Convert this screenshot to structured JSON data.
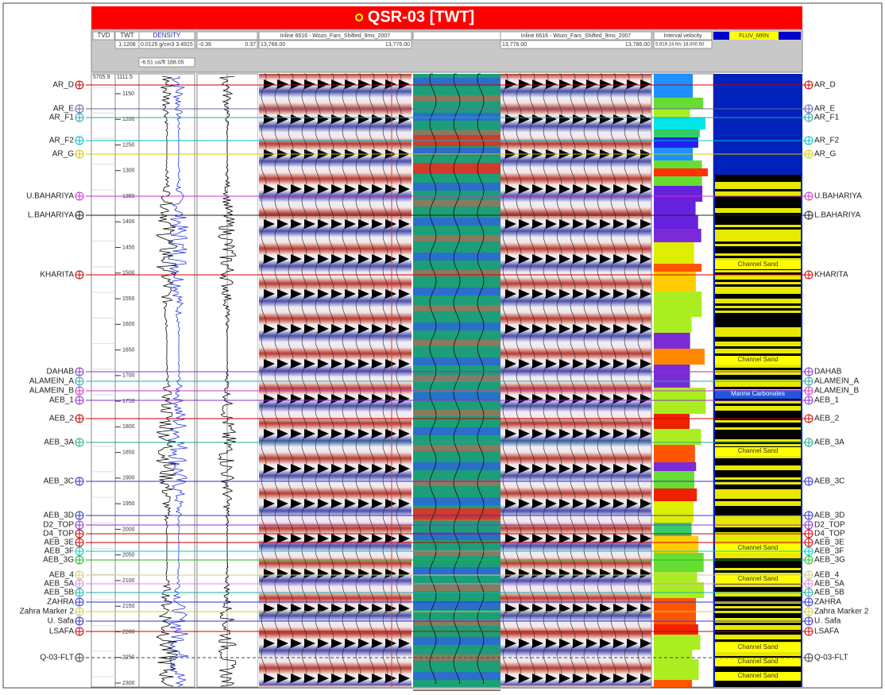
{
  "header": {
    "title": "QSR-03 [TWT]"
  },
  "tracks": {
    "tvd": {
      "name": "TVD",
      "top": "5705.9"
    },
    "twt": {
      "name": "TWT",
      "scale": "1:1208",
      "top": "1111.5",
      "ticks": [
        1150,
        1200,
        1250,
        1300,
        1350,
        1400,
        1450,
        1500,
        1550,
        1600,
        1650,
        1700,
        1750,
        1800,
        1850,
        1900,
        1950,
        2000,
        2050,
        2100,
        2150,
        2200,
        2250,
        2300
      ]
    },
    "density": {
      "name": "DENSITY",
      "range": "0.0125 g/cm3 3.4915",
      "sonic": "-6.51 us/ft 188.05"
    },
    "acoustic": {
      "min": "-0.39",
      "max": "0.37"
    },
    "seismic_left": {
      "name": "Inline 6616 - Wozo_Fars_Shifted_9ms_2007",
      "min": "13,766.00",
      "max": "13,776.00"
    },
    "seismic_right": {
      "name": "Inline 6616 - Wozo_Fars_Shifted_9ms_2007",
      "min": "13,776.00",
      "max": "13,786.00"
    },
    "velocity": {
      "name": "Interval velocity",
      "range": "5,919.24 ft/s 18,000.50"
    },
    "facies": {
      "name": "FLUV_MRN",
      "labels": [
        "Channel Sand",
        "Channel Sand",
        "Marine Carbonates",
        "Channel Sand",
        "Channel Sand",
        "Channel Sand",
        "Channel Sand",
        "Channel Sand",
        "Channel Sand"
      ]
    }
  },
  "horizons": [
    "AR_D",
    "AR_E",
    "AR_F1",
    "AR_F2",
    "AR_G",
    "U.BAHARIYA",
    "L.BAHARIYA",
    "KHARITA",
    "DAHAB",
    "ALAMEIN_A",
    "ALAMEIN_B",
    "AEB_1",
    "AEB_2",
    "AEB_3A",
    "AEB_3C",
    "AEB_3D",
    "D2_TOP",
    "D4_TOP",
    "AEB_3E",
    "AEB_3F",
    "AEB_3G",
    "AEB_4",
    "AEB_5A",
    "AEB_5B",
    "ZAHRA",
    "Zahra Marker 2",
    "U. Safa",
    "LSAFA",
    "Q-03-FLT"
  ]
}
